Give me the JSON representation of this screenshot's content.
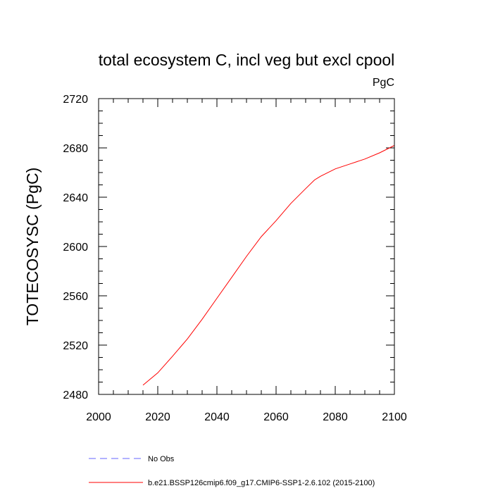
{
  "chart_data": {
    "type": "line",
    "title": "total ecosystem C, incl veg but excl cpool",
    "units": "PgC",
    "ylabel": "TOTECOSYSC  (PgC)",
    "xlabel": "",
    "xlim": [
      2000,
      2100
    ],
    "ylim": [
      2480,
      2720
    ],
    "xticks": [
      "2000",
      "2020",
      "2040",
      "2060",
      "2080",
      "2100"
    ],
    "yticks": [
      "2480",
      "2520",
      "2560",
      "2600",
      "2640",
      "2680",
      "2720"
    ],
    "grid": false,
    "legend_position": "bottom",
    "series": [
      {
        "name": "No Obs",
        "color": "#6666ff",
        "style": "dashed",
        "x": [],
        "y": []
      },
      {
        "name": "b.e21.BSSP126cmip6.f09_g17.CMIP6-SSP1-2.6.102 (2015-2100)",
        "color": "#ff0000",
        "style": "solid",
        "x": [
          2015,
          2020,
          2025,
          2030,
          2035,
          2040,
          2045,
          2050,
          2055,
          2060,
          2065,
          2070,
          2073,
          2075,
          2080,
          2085,
          2090,
          2095,
          2100
        ],
        "y": [
          2487.5,
          2497.5,
          2511,
          2525,
          2541,
          2558,
          2575,
          2592,
          2608,
          2621,
          2635,
          2647,
          2654,
          2657,
          2663,
          2667,
          2671,
          2676,
          2682
        ]
      }
    ]
  }
}
